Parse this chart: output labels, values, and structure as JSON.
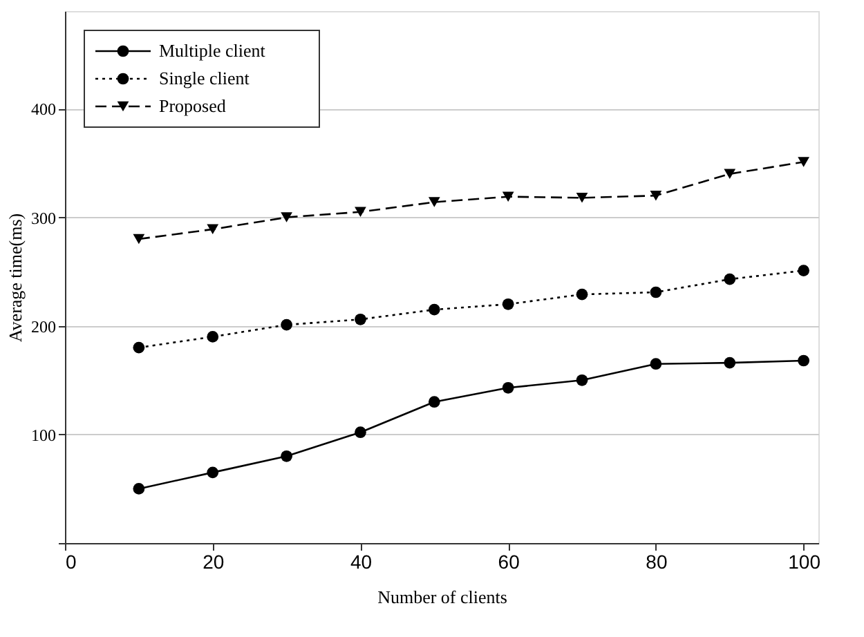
{
  "chart_data": {
    "type": "line",
    "xlabel": "Number of clients",
    "ylabel": "Average time(ms)",
    "x": [
      10,
      20,
      30,
      40,
      50,
      60,
      70,
      80,
      90,
      100
    ],
    "series": [
      {
        "name": "Multiple client",
        "color": "#000000",
        "marker": "circle",
        "line_style": "solid",
        "values": [
          50,
          65,
          80,
          102,
          130,
          143,
          150,
          165,
          166,
          168
        ]
      },
      {
        "name": "Single client",
        "color": "#000000",
        "marker": "circle",
        "line_style": "dotted",
        "values": [
          180,
          190,
          201,
          206,
          215,
          220,
          229,
          231,
          243,
          251
        ]
      },
      {
        "name": "Proposed",
        "color": "#000000",
        "marker": "triangle",
        "line_style": "dashed",
        "values": [
          280,
          289,
          300,
          305,
          314,
          319,
          318,
          320,
          340,
          351
        ]
      }
    ],
    "xlim": [
      0,
      102
    ],
    "xticks": [
      0,
      20,
      40,
      60,
      80,
      100
    ],
    "ylim": [
      0,
      490
    ],
    "yticks": [
      {
        "value": 0,
        "label": null
      },
      100,
      200,
      300,
      400
    ],
    "grid": "y",
    "legend": "top left"
  }
}
